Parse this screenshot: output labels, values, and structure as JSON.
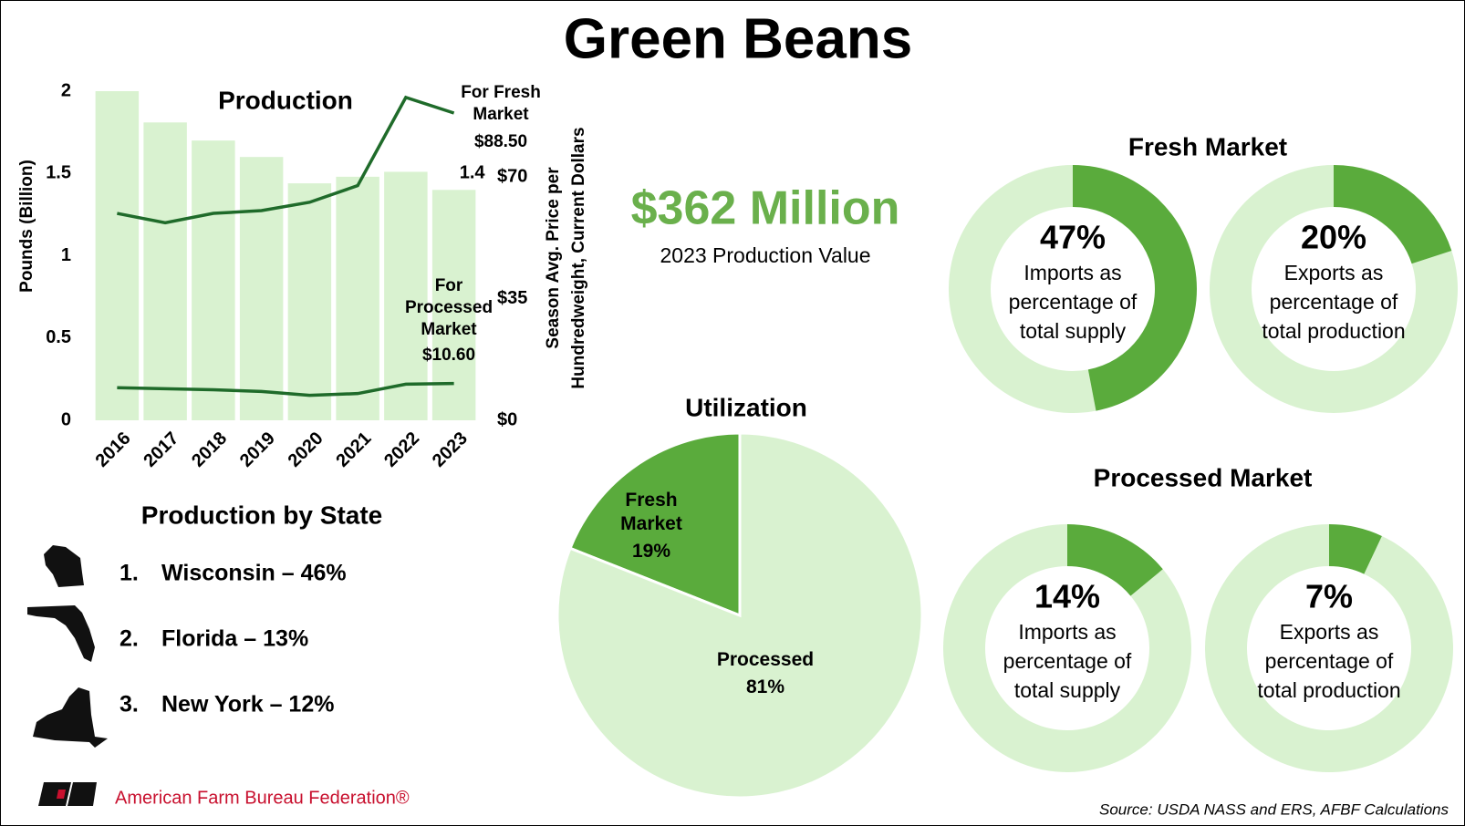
{
  "title": "Green Beans",
  "headline": {
    "value": "$362 Million",
    "label": "2023 Production Value"
  },
  "chart_data": [
    {
      "type": "bar_line",
      "title": "Production",
      "categories": [
        "2016",
        "2017",
        "2018",
        "2019",
        "2020",
        "2021",
        "2022",
        "2023"
      ],
      "ylabel": "Pounds (Billion)",
      "y2label": [
        "Season Avg. Price per",
        "Hundredweight, Current Dollars"
      ],
      "ylim": [
        0,
        2
      ],
      "yticks": [
        0,
        0.5,
        1,
        1.5,
        2
      ],
      "y2lim": [
        0,
        94.8
      ],
      "y2ticks": [
        {
          "value": 0,
          "label": "$0"
        },
        {
          "value": 35,
          "label": "$35"
        },
        {
          "value": 70,
          "label": "$70"
        }
      ],
      "series": [
        {
          "type": "bar",
          "color": "#d9f2d0",
          "values": [
            2.0,
            1.81,
            1.7,
            1.6,
            1.44,
            1.48,
            1.51,
            1.4
          ]
        },
        {
          "type": "line",
          "name": "For Fresh Market",
          "axis": "y2",
          "color": "#1f6b2a",
          "values": [
            59.6,
            56.9,
            59.6,
            60.4,
            62.8,
            67.6,
            93.0,
            88.5
          ],
          "value_labels": [
            null,
            null,
            null,
            null,
            null,
            null,
            null,
            "$88.50"
          ]
        },
        {
          "type": "line",
          "name": "For Processed Market",
          "axis": "y2",
          "color": "#1f6b2a",
          "values": [
            9.4,
            9.1,
            8.8,
            8.3,
            7.2,
            7.7,
            10.4,
            10.6
          ],
          "value_labels": [
            null,
            null,
            null,
            null,
            null,
            null,
            null,
            "$10.60"
          ]
        }
      ]
    },
    {
      "type": "pie",
      "title": "Utilization",
      "categories": [
        "Fresh Market",
        "Processed"
      ],
      "values": [
        19,
        81
      ],
      "value_labels": [
        "19%",
        "81%"
      ],
      "colors": [
        "#5aab3c",
        "#d9f2d0"
      ]
    },
    {
      "type": "donut",
      "title": "Fresh Market",
      "categories": [
        "Imports as percentage of total supply",
        "Exports as percentage of total production"
      ],
      "values": [
        47,
        20
      ],
      "value_labels": [
        "47%",
        "20%"
      ],
      "colors": [
        "#5aab3c",
        "#d9f2d0"
      ]
    },
    {
      "type": "donut",
      "title": "Processed Market",
      "categories": [
        "Imports as percentage of total supply",
        "Exports as percentage of total production"
      ],
      "values": [
        14,
        7
      ],
      "value_labels": [
        "14%",
        "7%"
      ],
      "colors": [
        "#5aab3c",
        "#d9f2d0"
      ]
    }
  ],
  "states": {
    "title": "Production by State",
    "items": [
      {
        "rank": "1.",
        "label": "Wisconsin – 46%"
      },
      {
        "rank": "2.",
        "label": "Florida – 13%"
      },
      {
        "rank": "3.",
        "label": "New York – 12%"
      }
    ]
  },
  "logo": "American Farm Bureau Federation®",
  "source": "Source: USDA NASS and ERS, AFBF Calculations"
}
